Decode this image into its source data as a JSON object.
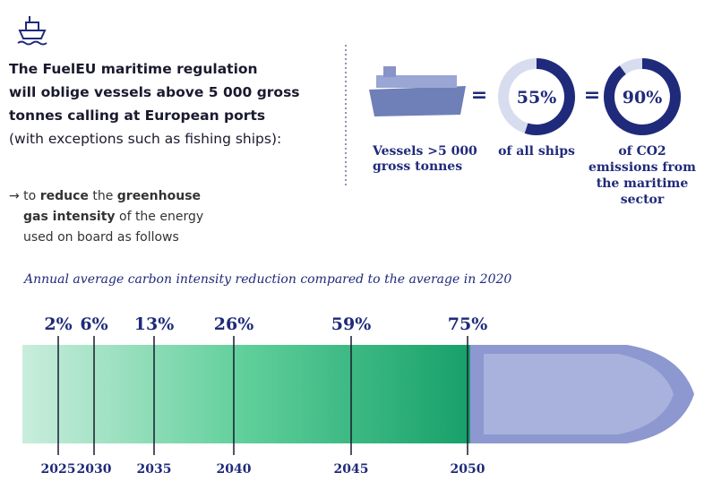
{
  "intro": {
    "bold_lines": [
      "The FuelEU maritime regulation",
      "will oblige vessels above 5 000 gross",
      "tonnes calling at European ports"
    ],
    "note": "(with exceptions such as fishing ships):"
  },
  "goal": {
    "line1": [
      "→ to ",
      "reduce",
      " the ",
      "greenhouse"
    ],
    "line2": [
      "gas intensity",
      " of the energy"
    ],
    "line3": "used on board as follows"
  },
  "stats": {
    "vessels_label": [
      "Vessels  >5 000",
      "gross tonnes"
    ],
    "equals": "=",
    "donuts": [
      {
        "value": 55,
        "value_label": "55%",
        "caption": [
          "of all ships"
        ]
      },
      {
        "value": 90,
        "value_label": "90%",
        "caption": [
          "of CO2",
          "emissions from",
          "the maritime",
          "sector"
        ]
      }
    ]
  },
  "timeline": {
    "title": "Annual average carbon intensity reduction compared to the average in 2020",
    "milestones": [
      {
        "year": "2025",
        "reduction": "2%"
      },
      {
        "year": "2030",
        "reduction": "6%"
      },
      {
        "year": "2035",
        "reduction": "13%"
      },
      {
        "year": "2040",
        "reduction": "26%"
      },
      {
        "year": "2045",
        "reduction": "59%"
      },
      {
        "year": "2050",
        "reduction": "75%"
      }
    ]
  }
}
